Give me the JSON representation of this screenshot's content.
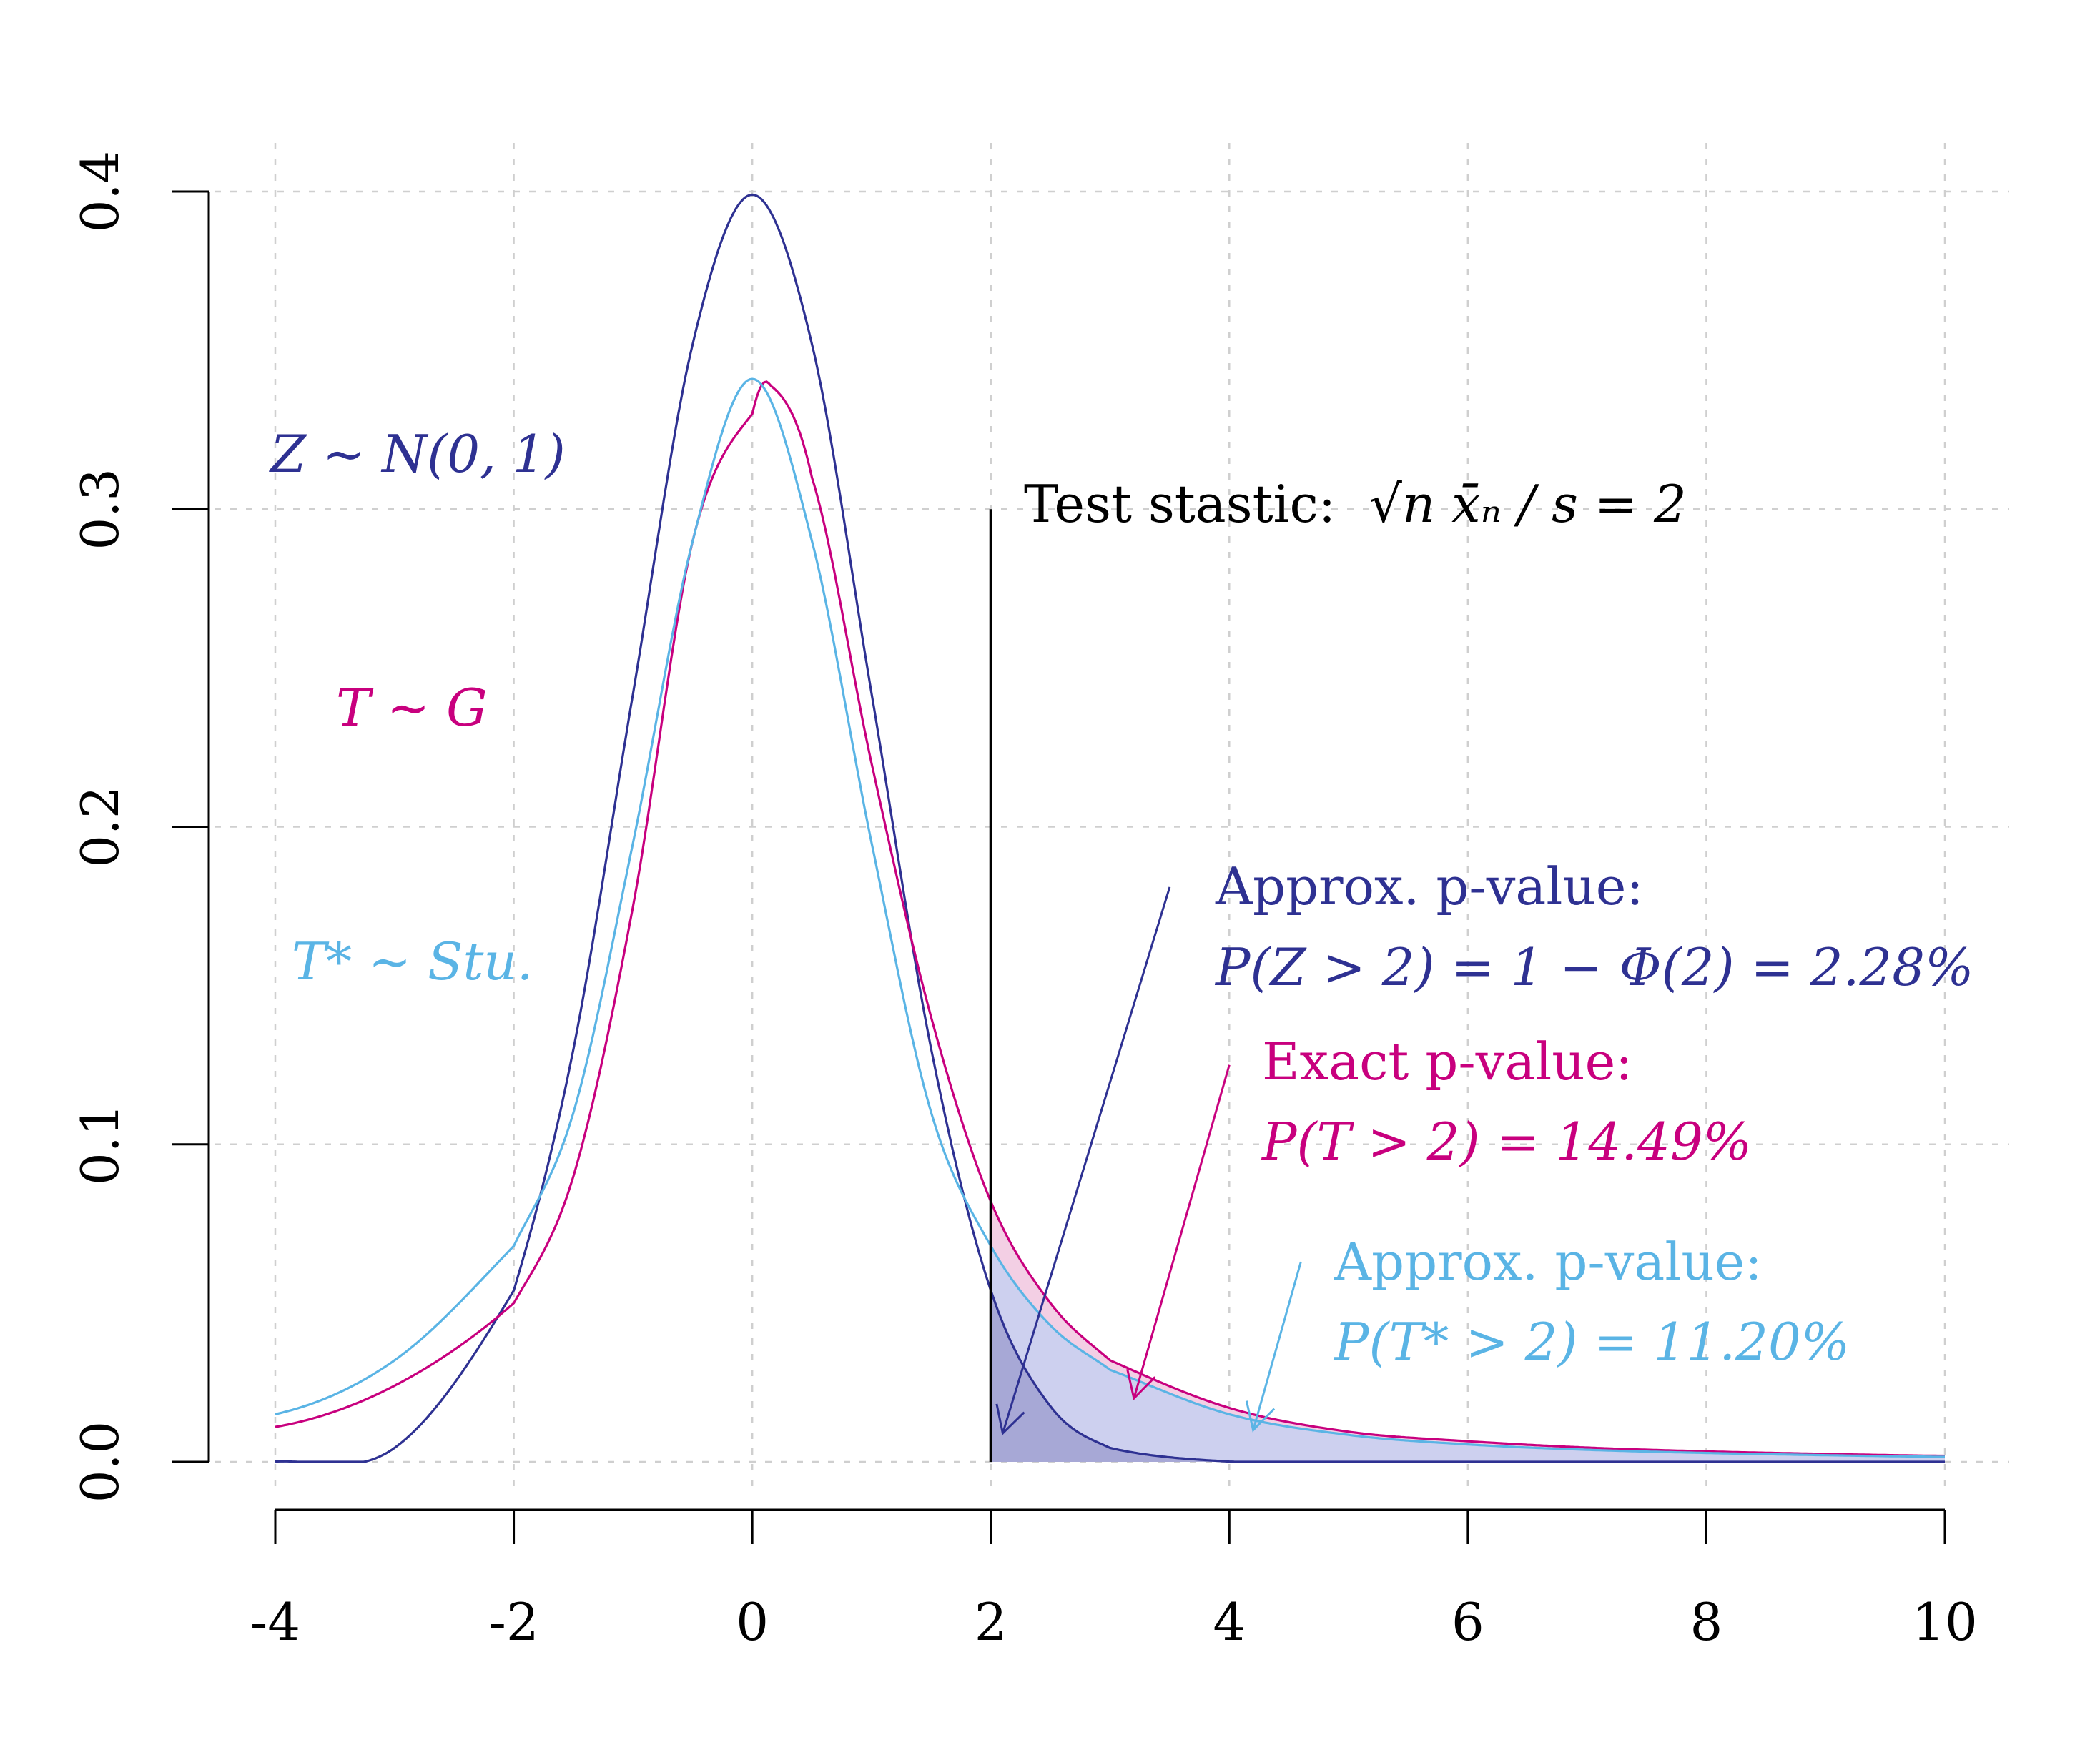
{
  "chart_data": {
    "type": "line",
    "title": "",
    "xlabel": "",
    "ylabel": "",
    "xlim": [
      -4,
      10
    ],
    "ylim": [
      0,
      0.4
    ],
    "x_ticks": [
      "-4",
      "-2",
      "0",
      "2",
      "4",
      "6",
      "8",
      "10"
    ],
    "y_ticks": [
      "0.0",
      "0.1",
      "0.2",
      "0.3",
      "0.4"
    ],
    "grid": true,
    "grid_style": "dashed",
    "test_statistic": 2,
    "series": [
      {
        "name": "Z ~ N(0,1)",
        "color": "#2e3192",
        "x": [
          -4,
          -3,
          -2,
          -1.5,
          -1,
          -0.5,
          0,
          0.5,
          1,
          1.5,
          2,
          2.5,
          3,
          4,
          5,
          6,
          8,
          10
        ],
        "y": [
          0.0001,
          0.0044,
          0.054,
          0.13,
          0.242,
          0.352,
          0.399,
          0.352,
          0.242,
          0.13,
          0.054,
          0.0175,
          0.0044,
          0.0001,
          0.0,
          0.0,
          0.0,
          0.0
        ]
      },
      {
        "name": "T ~ G",
        "color": "#c8007e",
        "x": [
          -4,
          -3,
          -2,
          -1.5,
          -1,
          -0.5,
          0,
          0.15,
          0.5,
          1,
          1.5,
          2,
          2.5,
          3,
          4,
          5,
          6,
          7,
          8,
          9,
          10
        ],
        "y": [
          0.011,
          0.024,
          0.05,
          0.09,
          0.175,
          0.29,
          0.33,
          0.339,
          0.31,
          0.22,
          0.14,
          0.082,
          0.05,
          0.032,
          0.017,
          0.0095,
          0.0065,
          0.0045,
          0.0033,
          0.0025,
          0.0019
        ]
      },
      {
        "name": "T* ~ Stu.",
        "color": "#5ab4e5",
        "x": [
          -4,
          -3,
          -2,
          -1.5,
          -1,
          -0.5,
          0,
          0.5,
          1,
          1.5,
          2,
          2.5,
          3,
          4,
          5,
          6,
          7,
          8,
          9,
          10
        ],
        "y": [
          0.015,
          0.032,
          0.068,
          0.11,
          0.195,
          0.29,
          0.341,
          0.29,
          0.195,
          0.11,
          0.068,
          0.043,
          0.029,
          0.015,
          0.0085,
          0.0055,
          0.0038,
          0.0028,
          0.0021,
          0.0016
        ]
      }
    ],
    "shaded_regions": [
      {
        "series": "Z ~ N(0,1)",
        "from_x": 2,
        "fill": "#a7a8d6"
      },
      {
        "series": "T* ~ Stu.",
        "from_x": 2,
        "fill": "#cdd0ef"
      },
      {
        "series": "T ~ G",
        "from_x": 2,
        "fill": "#f3cfe4"
      }
    ],
    "labels": {
      "z_dist": "Z ∼ N(0, 1)",
      "t_dist": "T ∼ G",
      "tstar_dist": "T* ∼ Stu.",
      "test_stat_prefix": "Test stastic:",
      "test_stat_formula": "√n x̄ₙ / s = 2",
      "approx_z_line1": "Approx. p-value:",
      "approx_z_line2": "P(Z > 2) = 1 − Φ(2) = 2.28%",
      "exact_line1": "Exact p-value:",
      "exact_line2": "P(T > 2) = 14.49%",
      "approx_t_line1": "Approx. p-value:",
      "approx_t_line2": "P(T* > 2) = 11.20%"
    },
    "annotations": [
      {
        "label": "approx_z",
        "arrow_from": [
          3.5,
          0.181
        ],
        "arrow_to": [
          2.1,
          0.009
        ]
      },
      {
        "label": "exact",
        "arrow_from": [
          4.0,
          0.125
        ],
        "arrow_to": [
          3.2,
          0.02
        ]
      },
      {
        "label": "approx_t",
        "arrow_from": [
          4.6,
          0.063
        ],
        "arrow_to": [
          4.2,
          0.01
        ]
      }
    ]
  }
}
